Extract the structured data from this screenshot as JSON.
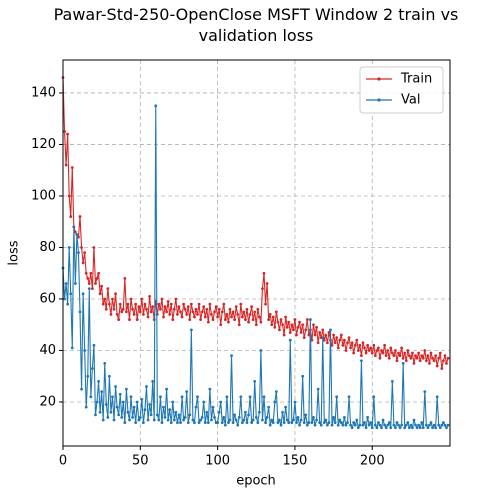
{
  "chart_data": {
    "type": "line",
    "title": "Pawar-Std-250-OpenClose MSFT Window 2 train vs validation loss",
    "xlabel": "epoch",
    "ylabel": "loss",
    "xlim": [
      0,
      249
    ],
    "ylim": [
      2.9,
      152.8
    ],
    "xticks": [
      0,
      50,
      100,
      150,
      200
    ],
    "yticks": [
      20,
      40,
      60,
      80,
      100,
      120,
      140
    ],
    "grid": true,
    "legend": "upper right",
    "x": [
      0,
      1,
      2,
      3,
      4,
      5,
      6,
      7,
      8,
      9,
      10,
      11,
      12,
      13,
      14,
      15,
      16,
      17,
      18,
      19,
      20,
      21,
      22,
      23,
      24,
      25,
      26,
      27,
      28,
      29,
      30,
      31,
      32,
      33,
      34,
      35,
      36,
      37,
      38,
      39,
      40,
      41,
      42,
      43,
      44,
      45,
      46,
      47,
      48,
      49,
      50,
      51,
      52,
      53,
      54,
      55,
      56,
      57,
      58,
      59,
      60,
      61,
      62,
      63,
      64,
      65,
      66,
      67,
      68,
      69,
      70,
      71,
      72,
      73,
      74,
      75,
      76,
      77,
      78,
      79,
      80,
      81,
      82,
      83,
      84,
      85,
      86,
      87,
      88,
      89,
      90,
      91,
      92,
      93,
      94,
      95,
      96,
      97,
      98,
      99,
      100,
      101,
      102,
      103,
      104,
      105,
      106,
      107,
      108,
      109,
      110,
      111,
      112,
      113,
      114,
      115,
      116,
      117,
      118,
      119,
      120,
      121,
      122,
      123,
      124,
      125,
      126,
      127,
      128,
      129,
      130,
      131,
      132,
      133,
      134,
      135,
      136,
      137,
      138,
      139,
      140,
      141,
      142,
      143,
      144,
      145,
      146,
      147,
      148,
      149,
      150,
      151,
      152,
      153,
      154,
      155,
      156,
      157,
      158,
      159,
      160,
      161,
      162,
      163,
      164,
      165,
      166,
      167,
      168,
      169,
      170,
      171,
      172,
      173,
      174,
      175,
      176,
      177,
      178,
      179,
      180,
      181,
      182,
      183,
      184,
      185,
      186,
      187,
      188,
      189,
      190,
      191,
      192,
      193,
      194,
      195,
      196,
      197,
      198,
      199,
      200,
      201,
      202,
      203,
      204,
      205,
      206,
      207,
      208,
      209,
      210,
      211,
      212,
      213,
      214,
      215,
      216,
      217,
      218,
      219,
      220,
      221,
      222,
      223,
      224,
      225,
      226,
      227,
      228,
      229,
      230,
      231,
      232,
      233,
      234,
      235,
      236,
      237,
      238,
      239,
      240,
      241,
      242,
      243,
      244,
      245,
      246,
      247,
      248,
      249
    ],
    "series": [
      {
        "name": "Train",
        "color": "#d62728",
        "values": [
          146,
          125,
          112,
          124,
          100,
          92,
          111,
          88,
          86,
          85,
          84,
          92,
          80,
          74,
          78,
          70,
          68,
          66,
          70,
          64,
          80,
          66,
          68,
          70,
          62,
          65,
          58,
          60,
          56,
          64,
          58,
          54,
          60,
          56,
          62,
          54,
          52,
          58,
          55,
          56,
          68,
          55,
          58,
          52,
          60,
          56,
          54,
          58,
          52,
          57,
          55,
          60,
          54,
          58,
          56,
          53,
          61,
          55,
          57,
          52,
          59,
          54,
          58,
          56,
          60,
          53,
          57,
          55,
          59,
          54,
          58,
          52,
          56,
          60,
          54,
          57,
          55,
          53,
          58,
          56,
          54,
          57,
          52,
          58,
          55,
          53,
          56,
          54,
          58,
          52,
          55,
          57,
          53,
          56,
          51,
          58,
          54,
          52,
          55,
          57,
          53,
          56,
          50,
          55,
          58,
          52,
          54,
          51,
          56,
          53,
          55,
          52,
          57,
          54,
          50,
          58,
          53,
          55,
          52,
          56,
          51,
          54,
          57,
          52,
          55,
          50,
          56,
          53,
          51,
          64,
          70,
          58,
          66,
          52,
          54,
          50,
          53,
          49,
          55,
          51,
          48,
          52,
          50,
          46,
          53,
          49,
          51,
          47,
          50,
          48,
          52,
          46,
          49,
          51,
          47,
          50,
          45,
          48,
          52,
          46,
          48,
          44,
          50,
          46,
          49,
          43,
          47,
          45,
          48,
          44,
          46,
          43,
          47,
          44,
          42,
          46,
          43,
          45,
          41,
          44,
          46,
          42,
          44,
          40,
          43,
          45,
          41,
          43,
          39,
          42,
          44,
          40,
          42,
          38,
          43,
          41,
          39,
          42,
          40,
          41,
          39,
          42,
          38,
          40,
          41,
          37,
          40,
          39,
          42,
          38,
          40,
          37,
          41,
          39,
          38,
          40,
          36,
          39,
          38,
          41,
          37,
          39,
          36,
          40,
          38,
          37,
          39,
          35,
          38,
          37,
          39,
          36,
          38,
          37,
          40,
          36,
          38,
          35,
          39,
          37,
          36,
          38,
          34,
          37,
          39,
          33,
          36,
          38,
          35,
          37
        ]
      },
      {
        "name": "Val",
        "color": "#1f77b4",
        "values": [
          72,
          60,
          66,
          58,
          80,
          62,
          41,
          88,
          66,
          85,
          78,
          55,
          25,
          62,
          40,
          18,
          30,
          64,
          22,
          33,
          42,
          15,
          20,
          28,
          16,
          24,
          13,
          35,
          19,
          14,
          30,
          16,
          22,
          13,
          26,
          18,
          15,
          23,
          14,
          20,
          12,
          25,
          16,
          13,
          22,
          14,
          18,
          12,
          20,
          13,
          14,
          21,
          12,
          17,
          26,
          13,
          19,
          15,
          28,
          13,
          135,
          15,
          13,
          22,
          12,
          18,
          14,
          25,
          13,
          17,
          12,
          20,
          13,
          16,
          12,
          15,
          12,
          22,
          13,
          14,
          24,
          12,
          15,
          48,
          13,
          12,
          18,
          22,
          12,
          13,
          14,
          20,
          12,
          16,
          12,
          25,
          13,
          18,
          14,
          12,
          12,
          16,
          20,
          12,
          14,
          11,
          22,
          12,
          13,
          38,
          12,
          15,
          13,
          11,
          14,
          22,
          12,
          13,
          16,
          12,
          15,
          22,
          12,
          13,
          28,
          14,
          12,
          16,
          40,
          13,
          22,
          12,
          14,
          18,
          11,
          13,
          12,
          20,
          24,
          12,
          13,
          11,
          16,
          12,
          18,
          13,
          12,
          44,
          12,
          13,
          20,
          12,
          14,
          11,
          13,
          30,
          12,
          15,
          11,
          12,
          52,
          12,
          14,
          11,
          13,
          25,
          12,
          11,
          45,
          12,
          13,
          11,
          12,
          48,
          11,
          14,
          12,
          22,
          11,
          13,
          12,
          11,
          14,
          11,
          12,
          22,
          11,
          10,
          12,
          11,
          13,
          10,
          11,
          36,
          11,
          12,
          10,
          14,
          11,
          12,
          10,
          22,
          11,
          10,
          12,
          11,
          10,
          13,
          11,
          10,
          11,
          12,
          10,
          28,
          11,
          10,
          12,
          11,
          10,
          11,
          35,
          10,
          11,
          12,
          10,
          11,
          10,
          13,
          11,
          10,
          11,
          10,
          12,
          10,
          24,
          11,
          10,
          11,
          12,
          10,
          11,
          10,
          22,
          11,
          10,
          11,
          12,
          11,
          10,
          11
        ]
      }
    ]
  }
}
